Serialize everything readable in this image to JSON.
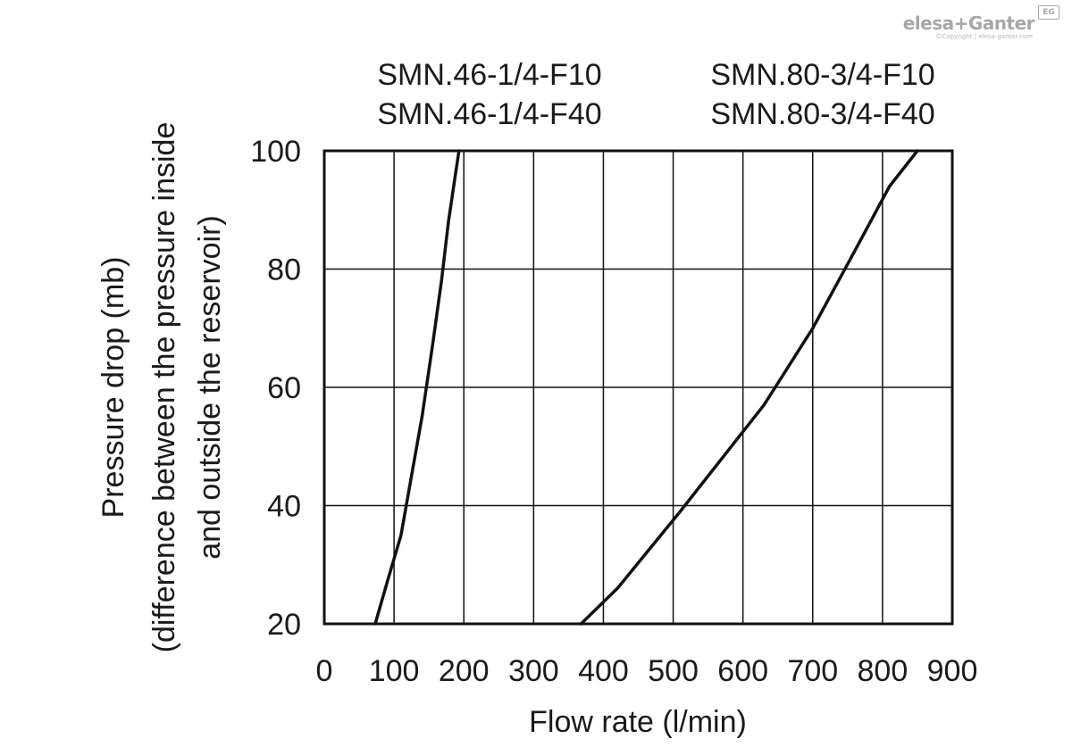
{
  "brand": {
    "logo_text": "elesa+Ganter",
    "badge": "EG",
    "copyright": "©Copyright | elesa-ganter.com"
  },
  "chart_data": {
    "type": "line",
    "title": "",
    "xlabel": "Flow rate (l/min)",
    "ylabel_lines": [
      "Pressure drop (mb)",
      "(difference between the pressure inside",
      "and outside the reservoir)"
    ],
    "xlim": [
      0,
      900
    ],
    "ylim": [
      20,
      100
    ],
    "xticks": [
      0,
      100,
      200,
      300,
      400,
      500,
      600,
      700,
      800,
      900
    ],
    "yticks": [
      20,
      40,
      60,
      80,
      100
    ],
    "grid": true,
    "series": [
      {
        "name_lines": [
          "SMN.46-1/4-F10",
          "SMN.46-1/4-F40"
        ],
        "x": [
          73,
          90,
          110,
          125,
          140,
          155,
          168,
          178,
          188,
          193
        ],
        "y": [
          20,
          27,
          35,
          45,
          55,
          67,
          78,
          88,
          96,
          100
        ]
      },
      {
        "name_lines": [
          "SMN.80-3/4-F10",
          "SMN.80-3/4-F40"
        ],
        "x": [
          368,
          420,
          510,
          590,
          630,
          700,
          760,
          810,
          850
        ],
        "y": [
          20,
          26,
          39,
          51,
          57,
          70,
          83,
          94,
          100
        ]
      }
    ],
    "colors": {
      "line": "#111111",
      "grid": "#111111",
      "text": "#1a1a1a"
    }
  }
}
